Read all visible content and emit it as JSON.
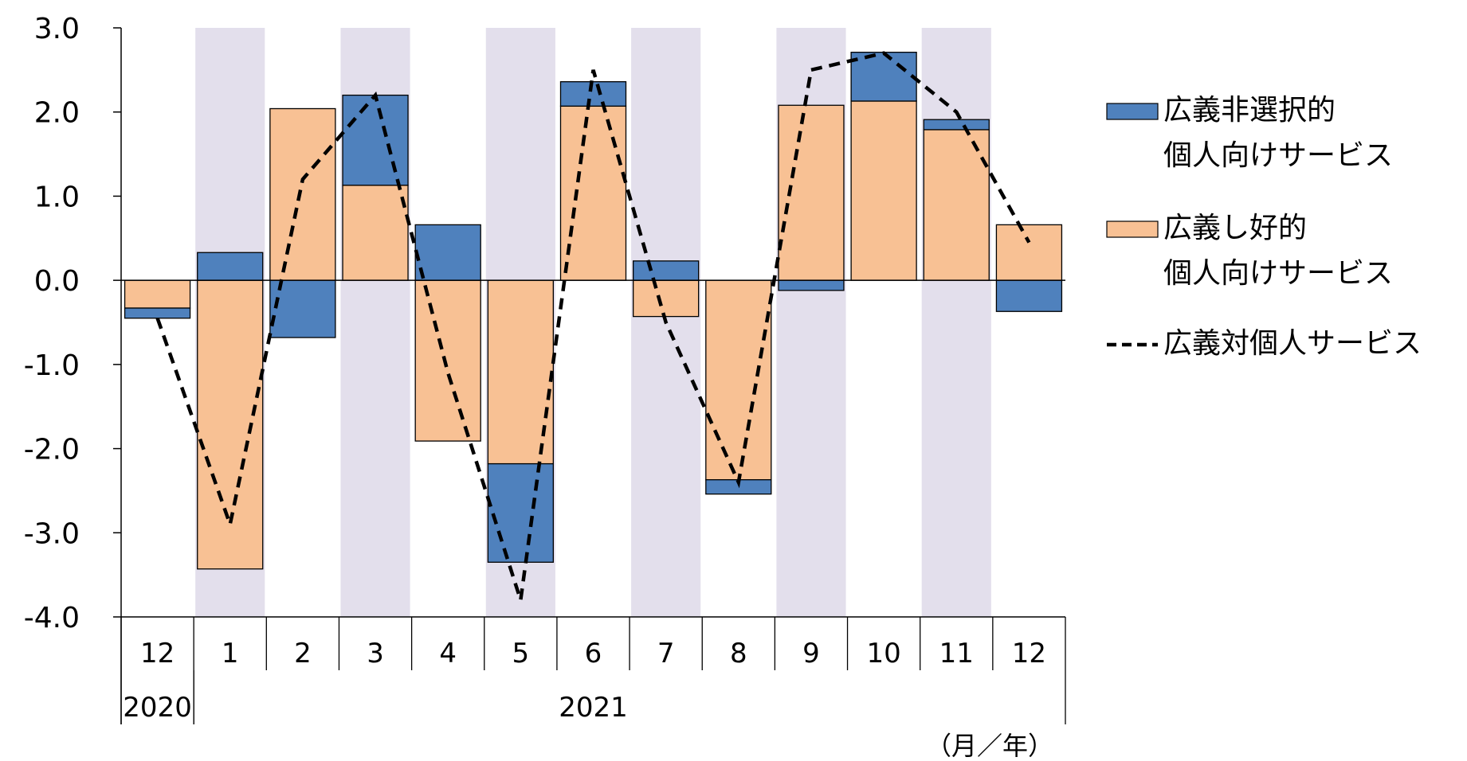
{
  "chart_data": {
    "type": "bar",
    "stacked": true,
    "categories": [
      "12",
      "1",
      "2",
      "3",
      "4",
      "5",
      "6",
      "7",
      "8",
      "9",
      "10",
      "11",
      "12"
    ],
    "year_labels": [
      "2020",
      "2021"
    ],
    "year_spans": [
      {
        "label_index": 0,
        "start": 0,
        "end": 1
      },
      {
        "label_index": 1,
        "start": 1,
        "end": 13
      }
    ],
    "unit_label": "（月／年）",
    "ylim": [
      -4.0,
      3.0
    ],
    "y_ticks": [
      "3.0",
      "2.0",
      "1.0",
      "0.0",
      "-1.0",
      "-2.0",
      "-3.0",
      "-4.0"
    ],
    "y_tick_values": [
      3,
      2,
      1,
      0,
      -1,
      -2,
      -3,
      -4
    ],
    "shaded_categories": [
      1,
      3,
      5,
      7,
      9,
      11
    ],
    "series": [
      {
        "name_lines": [
          "広義し好的",
          "個人向けサービス"
        ],
        "kind": "bar",
        "color": "#F8C194",
        "values": [
          -0.33,
          -3.43,
          2.04,
          1.13,
          -1.91,
          -2.18,
          2.07,
          -0.43,
          -2.37,
          2.08,
          2.13,
          1.79,
          0.0
        ]
      },
      {
        "name_lines": [
          "広義非選択的",
          "個人向けサービス"
        ],
        "kind": "bar",
        "color": "#4F81BD",
        "values": [
          -0.12,
          0.33,
          -0.68,
          1.07,
          0.66,
          -1.17,
          0.29,
          0.23,
          -0.17,
          -0.12,
          0.58,
          0.12,
          0.0
        ]
      },
      {
        "name_lines": [
          "広義対個人サービス"
        ],
        "kind": "line",
        "color": "#000000",
        "values": [
          -0.45,
          -2.9,
          1.2,
          2.2,
          -1.1,
          -3.8,
          2.5,
          -0.5,
          -2.4,
          2.5,
          2.7,
          2.0,
          0.45
        ]
      }
    ],
    "stack_override": [
      {
        "index": 12,
        "segments": [
          {
            "series": 0,
            "from": 0,
            "to": 0.66
          },
          {
            "series": 1,
            "from": 0,
            "to": -0.37
          }
        ]
      }
    ],
    "legend_position": "right"
  }
}
